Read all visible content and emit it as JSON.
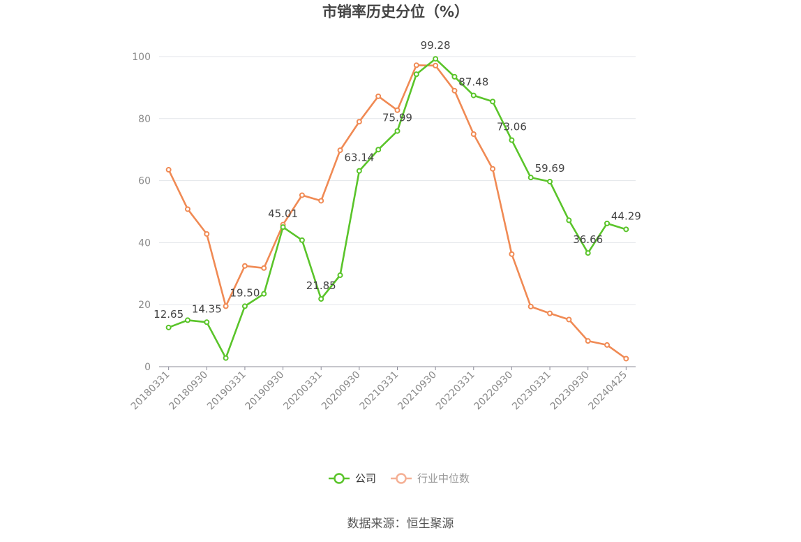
{
  "title": "市销率历史分位（%）",
  "source": "数据来源：恒生聚源",
  "colors": {
    "company": "#5ac42a",
    "industry": "#f08a54",
    "grid": "#e3e6ea",
    "axis": "#8c8c99"
  },
  "chart_data": {
    "type": "line",
    "title": "市销率历史分位（%）",
    "ylim": [
      0,
      100
    ],
    "yticks": [
      0,
      20,
      40,
      60,
      80,
      100
    ],
    "grid": true,
    "legend_position": "bottom",
    "x": [
      "20180331",
      "20180630",
      "20180930",
      "20181231",
      "20190331",
      "20190630",
      "20190930",
      "20191231",
      "20200331",
      "20200630",
      "20200930",
      "20201231",
      "20210331",
      "20210630",
      "20210930",
      "20211231",
      "20220331",
      "20220630",
      "20220930",
      "20221231",
      "20230331",
      "20230630",
      "20230930",
      "20231231",
      "20240425"
    ],
    "xtick_labels": [
      "20180331",
      "20180930",
      "20190331",
      "20190930",
      "20200331",
      "20200930",
      "20210331",
      "20210930",
      "20220331",
      "20220930",
      "20230331",
      "20230930",
      "20240425"
    ],
    "series": [
      {
        "name": "公司",
        "color": "#5ac42a",
        "values": [
          12.65,
          15.0,
          14.35,
          2.8,
          19.5,
          23.5,
          45.01,
          40.8,
          21.85,
          29.5,
          63.14,
          70.0,
          75.99,
          94.3,
          99.28,
          93.5,
          87.48,
          85.5,
          73.06,
          61.0,
          59.69,
          47.2,
          36.66,
          46.2,
          44.29
        ],
        "labels": [
          "12.65",
          null,
          "14.35",
          null,
          "19.50",
          null,
          "45.01",
          null,
          "21.85",
          null,
          "63.14",
          null,
          "75.99",
          null,
          "99.28",
          null,
          "87.48",
          null,
          "73.06",
          null,
          "59.69",
          null,
          "36.66",
          null,
          "44.29"
        ]
      },
      {
        "name": "行业中位数",
        "color": "#f08a54",
        "values": [
          63.5,
          50.8,
          42.8,
          19.5,
          32.5,
          31.8,
          45.8,
          55.3,
          53.5,
          69.8,
          79.0,
          87.2,
          82.7,
          97.2,
          97.1,
          89.0,
          75.0,
          63.8,
          36.3,
          19.4,
          17.2,
          15.2,
          8.3,
          7.0,
          2.6
        ]
      }
    ]
  },
  "legend": [
    {
      "name": "公司",
      "color": "#5ac42a",
      "text_color": "#333333"
    },
    {
      "name": "行业中位数",
      "color": "#f5b095",
      "text_color": "#999999"
    }
  ]
}
